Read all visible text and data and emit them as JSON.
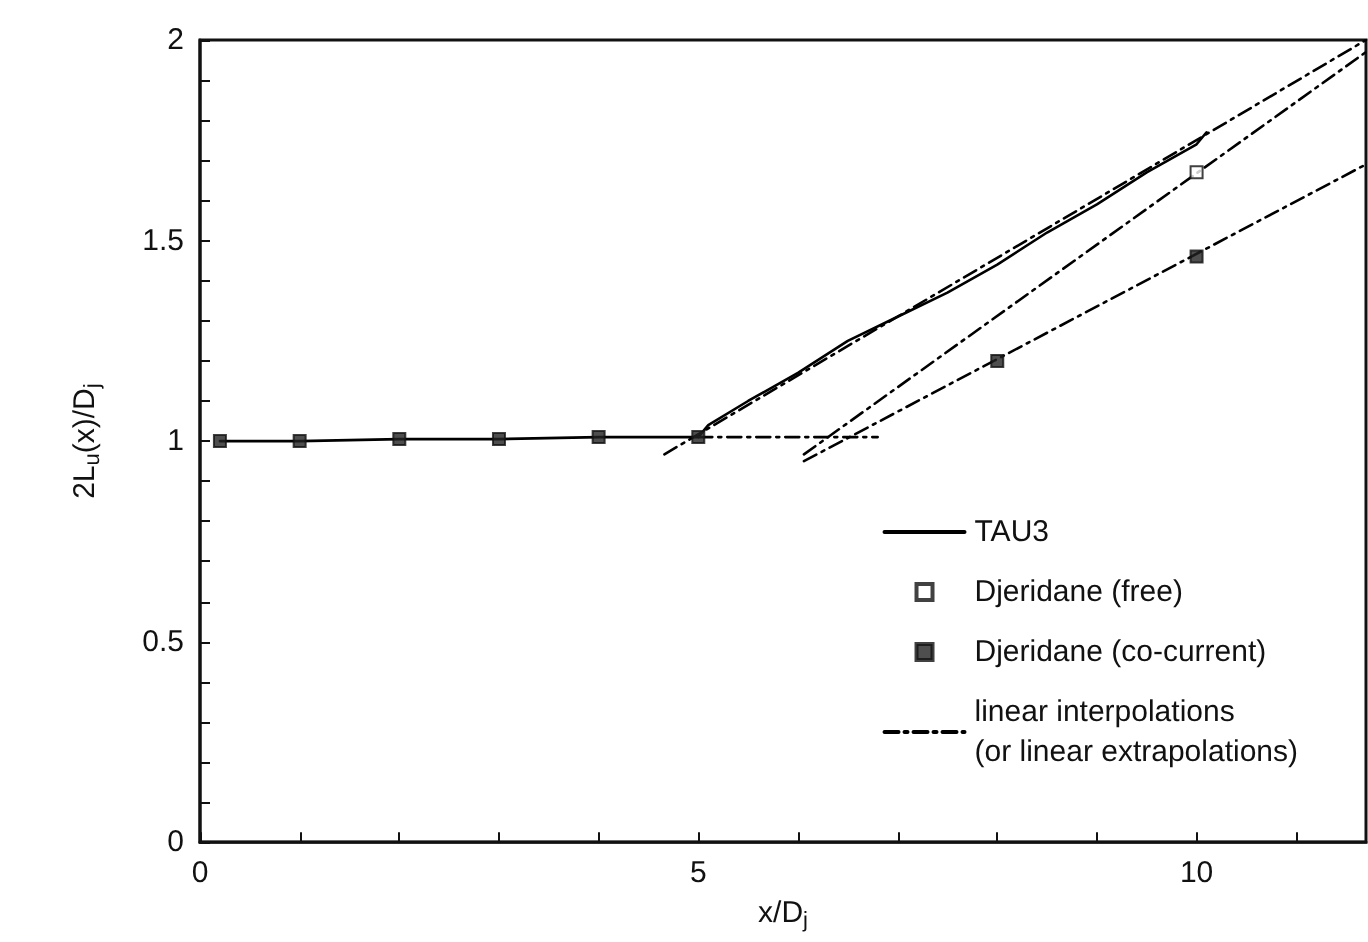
{
  "chart_data": {
    "type": "line",
    "xlabel": "x/D$_{j}$",
    "ylabel": "2L$_{u}$(x)/D$_{j}$",
    "xlim": [
      0,
      11.7
    ],
    "ylim": [
      0,
      2
    ],
    "xticks": [
      0,
      {
        "value": 1,
        "label": null
      },
      {
        "value": 2,
        "label": null
      },
      {
        "value": 3,
        "label": null
      },
      {
        "value": 4,
        "label": null
      },
      5,
      {
        "value": 6,
        "label": null
      },
      {
        "value": 7,
        "label": null
      },
      {
        "value": 8,
        "label": null
      },
      {
        "value": 9,
        "label": null
      },
      10,
      {
        "value": 11,
        "label": null
      }
    ],
    "yticks": [
      0,
      {
        "value": 0.1,
        "label": null
      },
      {
        "value": 0.2,
        "label": null
      },
      {
        "value": 0.3,
        "label": null
      },
      {
        "value": 0.4,
        "label": null
      },
      0.5,
      {
        "value": 0.6,
        "label": null
      },
      {
        "value": 0.7,
        "label": null
      },
      {
        "value": 0.8,
        "label": null
      },
      {
        "value": 0.9,
        "label": null
      },
      1,
      {
        "value": 1.1,
        "label": null
      },
      {
        "value": 1.2,
        "label": null
      },
      {
        "value": 1.3,
        "label": null
      },
      {
        "value": 1.4,
        "label": null
      },
      1.5,
      {
        "value": 1.6,
        "label": null
      },
      {
        "value": 1.7,
        "label": null
      },
      {
        "value": 1.8,
        "label": null
      },
      {
        "value": 1.9,
        "label": null
      },
      2
    ],
    "grid": false,
    "legend": "bottom right",
    "series": [
      {
        "name": "TAU3",
        "color": "#000000",
        "marker": "none",
        "line_style": "solid",
        "x": [
          0.2,
          1,
          2,
          3,
          4,
          5,
          5.1,
          5.5,
          6,
          6.5,
          7,
          7.5,
          8,
          8.5,
          9,
          9.5,
          10,
          10.1
        ],
        "values": [
          1.0,
          1.0,
          1.005,
          1.005,
          1.01,
          1.01,
          1.04,
          1.1,
          1.17,
          1.25,
          1.31,
          1.37,
          1.44,
          1.52,
          1.59,
          1.67,
          1.74,
          1.77
        ]
      },
      {
        "name": "Djeridane (free)",
        "type": "scatter",
        "color": "#ffffff",
        "marker": "square",
        "x": [
          10
        ],
        "values": [
          1.67
        ]
      },
      {
        "name": "Djeridane (co-current)",
        "type": "scatter",
        "color": "#222222",
        "marker": "square",
        "x": [
          0.2,
          1,
          2,
          3,
          4,
          5,
          8,
          10
        ],
        "values": [
          1.0,
          1.0,
          1.005,
          1.005,
          1.01,
          1.01,
          1.2,
          1.46
        ]
      },
      {
        "name": "linear interpolations\n(or linear extrapolations)",
        "color": "#000000",
        "marker": "none",
        "line_style": "dashed",
        "x": [
          5,
          6.8
        ],
        "values": [
          1.01,
          1.01
        ]
      },
      {
        "color": "#000000",
        "marker": "none",
        "line_style": "dashed",
        "x": [
          4.66,
          11.7
        ],
        "values": [
          0.967,
          2.0
        ]
      },
      {
        "color": "#000000",
        "marker": "none",
        "line_style": "dashed",
        "x": [
          6.06,
          11.7
        ],
        "values": [
          0.967,
          1.97
        ]
      },
      {
        "color": "#000000",
        "marker": "none",
        "line_style": "dashed",
        "x": [
          6.06,
          11.7
        ],
        "values": [
          0.95,
          1.69
        ]
      }
    ]
  }
}
